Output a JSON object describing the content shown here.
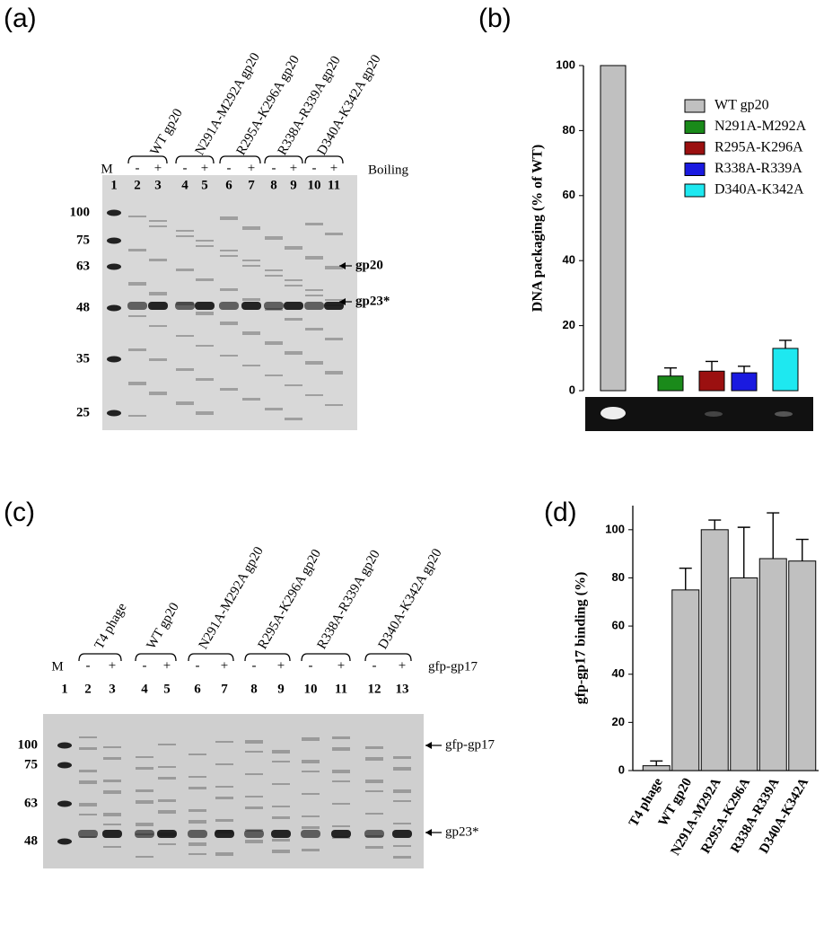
{
  "panels": {
    "a": {
      "label": "(a)",
      "lane_headers": [
        "WT gp20",
        "N291A-M292A gp20",
        "R295A-K296A gp20",
        "R338A-R339A gp20",
        "D340A-K342A gp20"
      ],
      "marker_lane": "M",
      "lane_numbers": [
        "1",
        "2",
        "3",
        "4",
        "5",
        "6",
        "7",
        "8",
        "9",
        "10",
        "11"
      ],
      "signs": [
        "-",
        "+",
        "-",
        "+",
        "-",
        "+",
        "-",
        "+",
        "-",
        "+"
      ],
      "condition": "Boiling",
      "markers": [
        "100",
        "75",
        "63",
        "48",
        "35",
        "25"
      ],
      "bands": [
        "gp20",
        "gp23*"
      ]
    },
    "b": {
      "label": "(b)"
    },
    "c": {
      "label": "(c)",
      "lane_headers": [
        "T4 phage",
        "WT gp20",
        "N291A-M292A gp20",
        "R295A-K296A gp20",
        "R338A-R339A gp20",
        "D340A-K342A gp20"
      ],
      "marker_lane": "M",
      "lane_numbers": [
        "1",
        "2",
        "3",
        "4",
        "5",
        "6",
        "7",
        "8",
        "9",
        "10",
        "11",
        "12",
        "13"
      ],
      "signs": [
        "-",
        "+",
        "-",
        "+",
        "-",
        "+",
        "-",
        "+",
        "-",
        "+",
        "-",
        "+"
      ],
      "condition": "gfp-gp17",
      "markers": [
        "100",
        "75",
        "63",
        "48"
      ],
      "bands": [
        "gfp-gp17",
        "gp23*"
      ]
    },
    "d": {
      "label": "(d)"
    }
  },
  "chart_data": [
    {
      "type": "bar",
      "ylabel": "DNA packaging (% of WT)",
      "ylim": [
        0,
        100
      ],
      "yticks": [
        0,
        20,
        40,
        60,
        80,
        100
      ],
      "legend": "upper right",
      "series": [
        {
          "name": "WT gp20",
          "color": "#c0c0c0",
          "values": [
            100
          ]
        },
        {
          "name": "N291A-M292A",
          "color": "#1a8a1a",
          "values": [
            4.5
          ],
          "errors": [
            2.5
          ]
        },
        {
          "name": "R295A-K296A",
          "color": "#9b1010",
          "values": [
            6
          ],
          "errors": [
            3
          ]
        },
        {
          "name": "R338A-R339A",
          "color": "#1a1ae0",
          "values": [
            5.5
          ],
          "errors": [
            2
          ]
        },
        {
          "name": "D340A-K342A",
          "color": "#1ee8f0",
          "values": [
            13
          ],
          "errors": [
            2.5
          ]
        }
      ]
    },
    {
      "type": "bar",
      "ylabel": "gfp-gp17 binding (%)",
      "ylim": [
        0,
        110
      ],
      "yticks": [
        0,
        20,
        40,
        60,
        80,
        100
      ],
      "color": "#c0c0c0",
      "categories": [
        "T4 phage",
        "WT gp20",
        "N291A-M292A",
        "R295A-K296A",
        "R338A-R339A",
        "D340A-K342A"
      ],
      "values": [
        2,
        75,
        100,
        80,
        88,
        87
      ],
      "errors": [
        2,
        9,
        4,
        21,
        19,
        9
      ]
    }
  ]
}
